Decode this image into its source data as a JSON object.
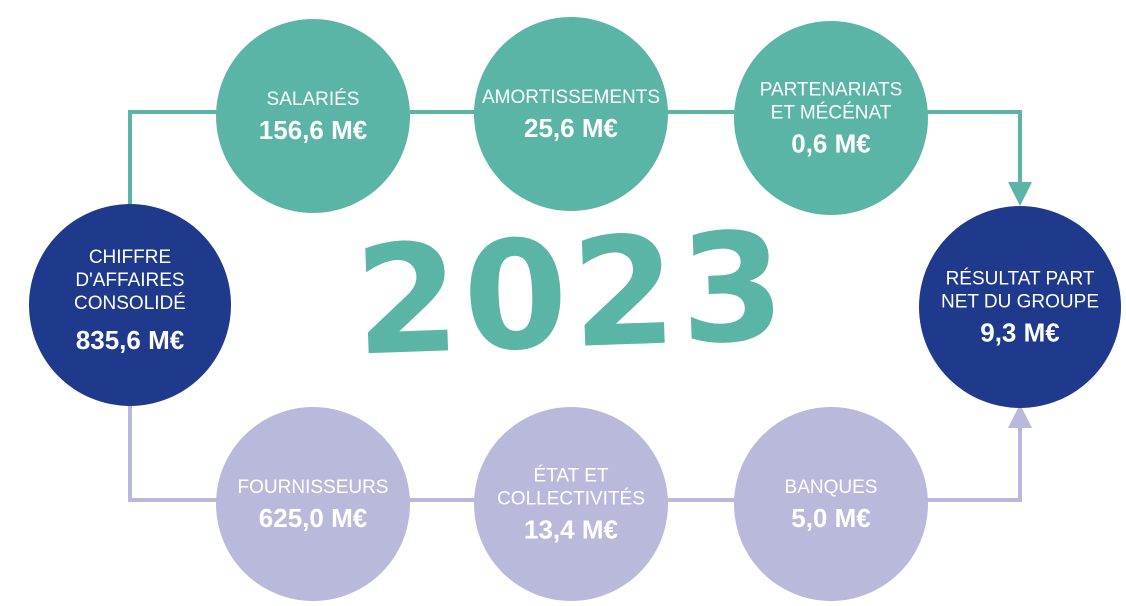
{
  "year": "2023",
  "nodes": [
    {
      "label": [
        "CHIFFRE",
        "D'AFFAIRES",
        "CONSOLIDÉ"
      ],
      "value": "835,6 M€"
    },
    {
      "label": [
        "SALARIÉS"
      ],
      "value": "156,6 M€"
    },
    {
      "label": [
        "AMORTISSEMENTS"
      ],
      "value": "25,6 M€"
    },
    {
      "label": [
        "PARTENARIATS",
        "ET MÉCÉNAT"
      ],
      "value": "0,6 M€"
    },
    {
      "label": [
        "RÉSULTAT PART",
        "NET DU GROUPE"
      ],
      "value": "9,3 M€"
    },
    {
      "label": [
        "FOURNISSEURS"
      ],
      "value": "625,0 M€"
    },
    {
      "label": [
        "ÉTAT ET",
        "COLLECTIVITÉS"
      ],
      "value": "13,4 M€"
    },
    {
      "label": [
        "BANQUES"
      ],
      "value": "5,0 M€"
    }
  ]
}
